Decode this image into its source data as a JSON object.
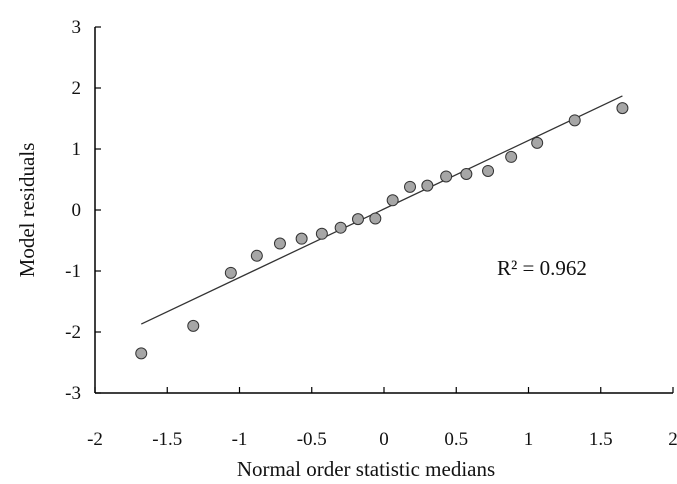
{
  "chart_data": {
    "type": "scatter",
    "xlabel": "Normal order statistic medians",
    "ylabel": "Model residuals",
    "xlim": [
      -2,
      2
    ],
    "ylim": [
      -3,
      3
    ],
    "x_ticks": [
      -2,
      -1.5,
      -1,
      -0.5,
      0,
      0.5,
      1,
      1.5,
      2
    ],
    "x_tick_labels": [
      "-2",
      "-1.5",
      "-1",
      "-0.5",
      "0",
      "0.5",
      "1",
      "1.5",
      "2"
    ],
    "y_ticks": [
      -3,
      -2,
      -1,
      0,
      1,
      2,
      3
    ],
    "y_tick_labels": [
      "-3",
      "-2",
      "-1",
      "0",
      "1",
      "2",
      "3"
    ],
    "grid": false,
    "legend": "none",
    "annotation": "R² = 0.962",
    "marker_color": "#a6a6a6",
    "marker_edge_color": "#333333",
    "trendline_color": "#333333",
    "trendline": {
      "x": [
        -1.68,
        1.65
      ],
      "y": [
        -1.87,
        1.87
      ]
    },
    "points": {
      "x": [
        -1.68,
        -1.32,
        -1.06,
        -0.88,
        -0.72,
        -0.57,
        -0.43,
        -0.3,
        -0.18,
        -0.06,
        0.06,
        0.18,
        0.3,
        0.43,
        0.57,
        0.72,
        0.88,
        1.06,
        1.32,
        1.65
      ],
      "y": [
        -2.35,
        -1.9,
        -1.03,
        -0.75,
        -0.55,
        -0.47,
        -0.39,
        -0.29,
        -0.15,
        -0.14,
        0.16,
        0.38,
        0.4,
        0.55,
        0.59,
        0.64,
        0.87,
        1.1,
        1.47,
        1.67
      ]
    }
  }
}
